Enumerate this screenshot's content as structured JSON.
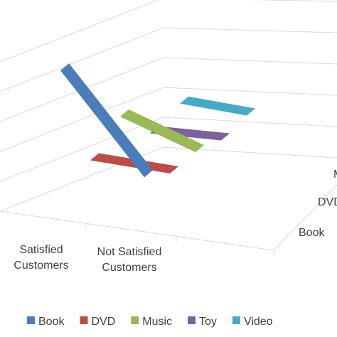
{
  "chart_data": {
    "type": "ribbon3d",
    "categories": [
      "Satisfied Customers",
      "Not Satisfied Customers"
    ],
    "series": [
      {
        "name": "Book",
        "color": "#4a7ebb",
        "values": [
          83,
          22
        ]
      },
      {
        "name": "DVD",
        "color": "#be4b48",
        "values": [
          17,
          13
        ]
      },
      {
        "name": "Music",
        "color": "#98b954",
        "values": [
          35,
          15
        ]
      },
      {
        "name": "Toy",
        "color": "#7d60a0",
        "values": [
          10,
          10
        ]
      },
      {
        "name": "Video",
        "color": "#46aac5",
        "values": [
          19,
          15
        ]
      }
    ],
    "legend": "bottom"
  }
}
